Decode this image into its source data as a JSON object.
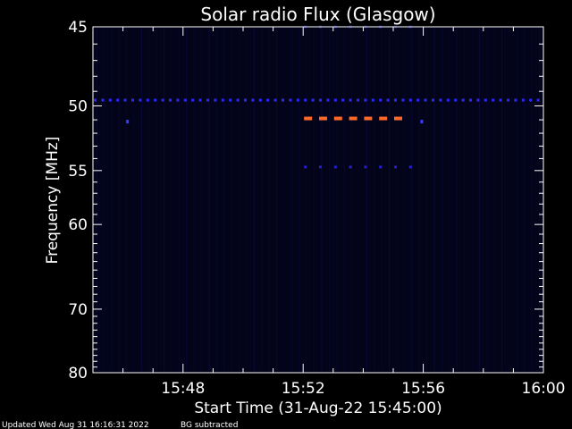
{
  "chart_data": {
    "type": "heatmap",
    "title": "Solar radio Flux (Glasgow)",
    "xlabel": "Start Time (31-Aug-22 15:45:00)",
    "ylabel": "Frequency [MHz]",
    "xlim_minutes": [
      0,
      15
    ],
    "ylim_mhz": [
      45,
      80
    ],
    "y_scale": "reciprocal",
    "x_ticks": [
      {
        "label": "15:48",
        "minute": 3
      },
      {
        "label": "15:52",
        "minute": 7
      },
      {
        "label": "15:56",
        "minute": 11
      },
      {
        "label": "16:00",
        "minute": 15
      }
    ],
    "y_ticks": [
      {
        "label": "45",
        "mhz": 45
      },
      {
        "label": "50",
        "mhz": 50
      },
      {
        "label": "55",
        "mhz": 55
      },
      {
        "label": "60",
        "mhz": 60
      },
      {
        "label": "70",
        "mhz": 70
      },
      {
        "label": "80",
        "mhz": 80
      }
    ],
    "bands": [
      {
        "name": "",
        "mhz": 49.6,
        "start_minute": 0,
        "end_minute": 15,
        "color": "#2a2aff"
      },
      {
        "name": "",
        "mhz": 50.9,
        "start_minute": 7,
        "end_minute": 10.6,
        "color": "#ff6a2a"
      },
      {
        "name": "",
        "mhz": 54.7,
        "start_minute": 7,
        "end_minute": 10.6,
        "color": "#2222cc"
      },
      {
        "name": "",
        "mhz": 45.0,
        "start_minute": 7,
        "end_minute": 10.6,
        "color": "#1a1a80"
      }
    ],
    "spots": [
      {
        "mhz": 51.1,
        "minute": 1.15,
        "color": "#3a3aff"
      },
      {
        "mhz": 51.1,
        "minute": 10.95,
        "color": "#3a3aff"
      }
    ]
  },
  "footer": {
    "updated": "Updated Wed Aug 31 16:16:31 2022",
    "note": "BG subtracted"
  },
  "colors": {
    "background": "#000000",
    "plot_background": "#03031a",
    "axes": "#ffffff"
  }
}
